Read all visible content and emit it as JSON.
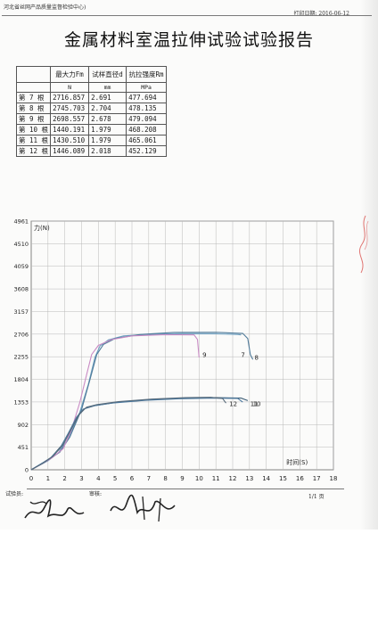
{
  "header": {
    "institution": "河北省丝网产品质量监督检验中心)",
    "print_date": "打印日期: 2016-06-12"
  },
  "title": "金属材料室温拉伸试验试验报告",
  "table": {
    "headers": [
      "",
      "最大力Fm",
      "试样直径d",
      "抗拉强度Rm"
    ],
    "units": [
      "",
      "N",
      "mm",
      "MPa"
    ],
    "rows": [
      [
        "第 7 根",
        "2716.857",
        "2.691",
        "477.694"
      ],
      [
        "第 8 根",
        "2745.703",
        "2.704",
        "478.135"
      ],
      [
        "第 9 根",
        "2698.557",
        "2.678",
        "479.094"
      ],
      [
        "第 10 根",
        "1440.191",
        "1.979",
        "468.208"
      ],
      [
        "第 11 根",
        "1430.510",
        "1.979",
        "465.061"
      ],
      [
        "第 12 根",
        "1446.089",
        "2.018",
        "452.129"
      ]
    ]
  },
  "chart_data": {
    "type": "line",
    "ylabel": "力(N)",
    "xlabel": "时间(S)",
    "x_ticks": [
      "0",
      "1",
      "2",
      "3",
      "4",
      "5",
      "6",
      "7",
      "8",
      "9",
      "10",
      "11",
      "12",
      "13",
      "14",
      "15",
      "16",
      "17",
      "18"
    ],
    "y_ticks": [
      "0",
      "451",
      "902",
      "1353",
      "1804",
      "2255",
      "2706",
      "3157",
      "3608",
      "4059",
      "4510",
      "4961"
    ],
    "xlim": [
      0,
      18
    ],
    "ylim": [
      0,
      4961
    ],
    "grid": true,
    "series_colors": {
      "7": "#6c9fc0",
      "8": "#4f7a99",
      "9": "#c98bc4",
      "10": "#3f5f77",
      "11": "#4d7aa0",
      "12": "#576a7a"
    },
    "series": [
      {
        "name": "7",
        "color": "#6c9fc0",
        "label_pos": [
          12.5,
          2250
        ],
        "points": [
          [
            0,
            0
          ],
          [
            0.5,
            90
          ],
          [
            1,
            180
          ],
          [
            1.6,
            330
          ],
          [
            2.2,
            620
          ],
          [
            2.9,
            1150
          ],
          [
            3.4,
            1700
          ],
          [
            3.8,
            2250
          ],
          [
            4.1,
            2470
          ],
          [
            4.6,
            2590
          ],
          [
            5.5,
            2670
          ],
          [
            7,
            2705
          ],
          [
            9,
            2716
          ],
          [
            11,
            2712
          ],
          [
            12.3,
            2700
          ],
          [
            12.5,
            2690
          ]
        ]
      },
      {
        "name": "8",
        "color": "#4f7a99",
        "label_pos": [
          13.3,
          2200
        ],
        "points": [
          [
            0,
            0
          ],
          [
            0.5,
            100
          ],
          [
            1,
            200
          ],
          [
            1.7,
            350
          ],
          [
            2.3,
            650
          ],
          [
            3,
            1200
          ],
          [
            3.5,
            1800
          ],
          [
            3.9,
            2300
          ],
          [
            4.3,
            2500
          ],
          [
            5,
            2620
          ],
          [
            6.5,
            2700
          ],
          [
            8.5,
            2740
          ],
          [
            11,
            2742
          ],
          [
            12.6,
            2720
          ],
          [
            12.9,
            2620
          ],
          [
            13.05,
            2300
          ],
          [
            13.2,
            2200
          ]
        ]
      },
      {
        "name": "9",
        "color": "#c98bc4",
        "label_pos": [
          10.2,
          2250
        ],
        "points": [
          [
            0,
            0
          ],
          [
            0.6,
            110
          ],
          [
            1.2,
            230
          ],
          [
            1.9,
            420
          ],
          [
            2.4,
            800
          ],
          [
            2.9,
            1350
          ],
          [
            3.3,
            1900
          ],
          [
            3.6,
            2300
          ],
          [
            4,
            2480
          ],
          [
            4.8,
            2600
          ],
          [
            6,
            2670
          ],
          [
            8,
            2695
          ],
          [
            9.7,
            2690
          ],
          [
            9.9,
            2600
          ],
          [
            10,
            2240
          ]
        ]
      },
      {
        "name": "10",
        "color": "#3f5f77",
        "label_pos": [
          13.2,
          1270
        ],
        "points": [
          [
            0,
            0
          ],
          [
            0.6,
            120
          ],
          [
            1.2,
            250
          ],
          [
            1.8,
            480
          ],
          [
            2.3,
            780
          ],
          [
            2.8,
            1080
          ],
          [
            3.2,
            1220
          ],
          [
            3.8,
            1280
          ],
          [
            5,
            1340
          ],
          [
            7,
            1395
          ],
          [
            9,
            1428
          ],
          [
            11,
            1440
          ],
          [
            12.5,
            1430
          ],
          [
            12.9,
            1380
          ]
        ]
      },
      {
        "name": "11",
        "color": "#4d7aa0",
        "label_pos": [
          13.05,
          1270
        ],
        "points": [
          [
            0,
            0
          ],
          [
            0.5,
            100
          ],
          [
            1.1,
            220
          ],
          [
            1.7,
            420
          ],
          [
            2.2,
            720
          ],
          [
            2.7,
            1050
          ],
          [
            3.1,
            1210
          ],
          [
            3.6,
            1270
          ],
          [
            4.8,
            1330
          ],
          [
            6.8,
            1385
          ],
          [
            8.8,
            1418
          ],
          [
            10.8,
            1430
          ],
          [
            12.3,
            1425
          ],
          [
            12.6,
            1350
          ]
        ]
      },
      {
        "name": "12",
        "color": "#576a7a",
        "label_pos": [
          11.8,
          1270
        ],
        "points": [
          [
            0,
            0
          ],
          [
            0.7,
            130
          ],
          [
            1.3,
            270
          ],
          [
            1.9,
            500
          ],
          [
            2.4,
            820
          ],
          [
            2.9,
            1130
          ],
          [
            3.3,
            1250
          ],
          [
            3.9,
            1300
          ],
          [
            5.2,
            1360
          ],
          [
            7.2,
            1410
          ],
          [
            9.2,
            1440
          ],
          [
            10.7,
            1446
          ],
          [
            11.4,
            1420
          ],
          [
            11.6,
            1330
          ]
        ]
      }
    ]
  },
  "footer": {
    "tester": "试验员:",
    "reviewer": "审核:",
    "page": "1/1 页"
  }
}
